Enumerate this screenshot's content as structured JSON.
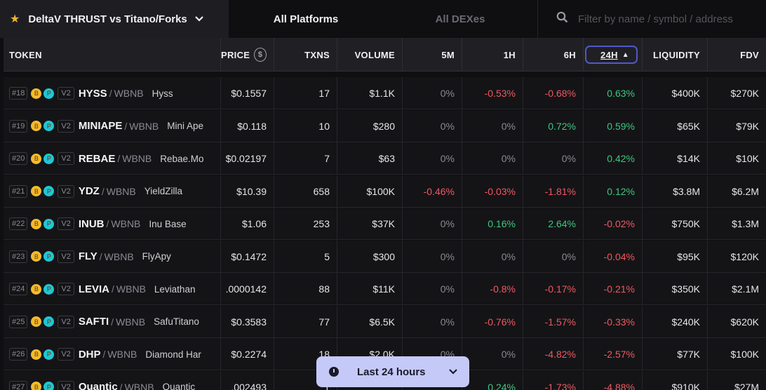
{
  "topbar": {
    "list_title": "DeltaV THRUST vs Titano/Forks",
    "star_icon": "★",
    "chevron_icon": "⌄",
    "platforms_label": "All Platforms",
    "dexes_label": "All DEXes",
    "search_placeholder": "Filter by name / symbol / address"
  },
  "header": {
    "token": "TOKEN",
    "price": "PRICE",
    "price_icon": "$",
    "txns": "TXNS",
    "volume": "VOLUME",
    "m5": "5M",
    "h1": "1H",
    "h6": "6H",
    "h24": "24H",
    "h24_sort_icon": "▲",
    "liquidity": "LIQUIDITY",
    "fdv": "FDV"
  },
  "rows": [
    {
      "rank": "#18",
      "version": "V2",
      "symbol": "HYSS",
      "quote": "WBNB",
      "name": "Hyss",
      "price": "$0.1557",
      "txns": "17",
      "volume": "$1.1K",
      "m5": "0%",
      "h1": "-0.53%",
      "h6": "-0.68%",
      "h24": "0.63%",
      "liquidity": "$400K",
      "fdv": "$270K"
    },
    {
      "rank": "#19",
      "version": "V2",
      "symbol": "MINIAPE",
      "quote": "WBNB",
      "name": "Mini Ape",
      "price": "$0.118",
      "txns": "10",
      "volume": "$280",
      "m5": "0%",
      "h1": "0%",
      "h6": "0.72%",
      "h24": "0.59%",
      "liquidity": "$65K",
      "fdv": "$79K"
    },
    {
      "rank": "#20",
      "version": "V2",
      "symbol": "REBAE",
      "quote": "WBNB",
      "name": "Rebae.Mo",
      "price": "$0.02197",
      "txns": "7",
      "volume": "$63",
      "m5": "0%",
      "h1": "0%",
      "h6": "0%",
      "h24": "0.42%",
      "liquidity": "$14K",
      "fdv": "$10K"
    },
    {
      "rank": "#21",
      "version": "V2",
      "symbol": "YDZ",
      "quote": "WBNB",
      "name": "YieldZilla",
      "price": "$10.39",
      "txns": "658",
      "volume": "$100K",
      "m5": "-0.46%",
      "h1": "-0.03%",
      "h6": "-1.81%",
      "h24": "0.12%",
      "liquidity": "$3.8M",
      "fdv": "$6.2M"
    },
    {
      "rank": "#22",
      "version": "V2",
      "symbol": "INUB",
      "quote": "WBNB",
      "name": "Inu Base",
      "price": "$1.06",
      "txns": "253",
      "volume": "$37K",
      "m5": "0%",
      "h1": "0.16%",
      "h6": "2.64%",
      "h24": "-0.02%",
      "liquidity": "$750K",
      "fdv": "$1.3M"
    },
    {
      "rank": "#23",
      "version": "V2",
      "symbol": "FLY",
      "quote": "WBNB",
      "name": "FlyApy",
      "price": "$0.1472",
      "txns": "5",
      "volume": "$300",
      "m5": "0%",
      "h1": "0%",
      "h6": "0%",
      "h24": "-0.04%",
      "liquidity": "$95K",
      "fdv": "$120K"
    },
    {
      "rank": "#24",
      "version": "V2",
      "symbol": "LEVIA",
      "quote": "WBNB",
      "name": "Leviathan",
      "price": ".0000142",
      "txns": "88",
      "volume": "$11K",
      "m5": "0%",
      "h1": "-0.8%",
      "h6": "-0.17%",
      "h24": "-0.21%",
      "liquidity": "$350K",
      "fdv": "$2.1M"
    },
    {
      "rank": "#25",
      "version": "V2",
      "symbol": "SAFTI",
      "quote": "WBNB",
      "name": "SafuTitano",
      "price": "$0.3583",
      "txns": "77",
      "volume": "$6.5K",
      "m5": "0%",
      "h1": "-0.76%",
      "h6": "-1.57%",
      "h24": "-0.33%",
      "liquidity": "$240K",
      "fdv": "$620K"
    },
    {
      "rank": "#26",
      "version": "V2",
      "symbol": "DHP",
      "quote": "WBNB",
      "name": "Diamond Har",
      "price": "$0.2274",
      "txns": "18",
      "volume": "$2.0K",
      "m5": "0%",
      "h1": "0%",
      "h6": "-4.82%",
      "h24": "-2.57%",
      "liquidity": "$77K",
      "fdv": "$100K"
    },
    {
      "rank": "#27",
      "version": "V2",
      "symbol": "Quantic",
      "quote": "WBNB",
      "name": "Quantic",
      "price": ".002493",
      "txns": "1",
      "volume": "",
      "m5": "",
      "h1": "0.24%",
      "h6": "-1.73%",
      "h24": "-4.88%",
      "liquidity": "$910K",
      "fdv": "$27M"
    }
  ],
  "time_filter": {
    "label": "Last 24 hours",
    "chevron_icon": "⌄"
  },
  "colors": {
    "negative": "#f0585f",
    "positive": "#3ec77f",
    "accent": "#5158c8",
    "pill": "#c5c9f7"
  }
}
